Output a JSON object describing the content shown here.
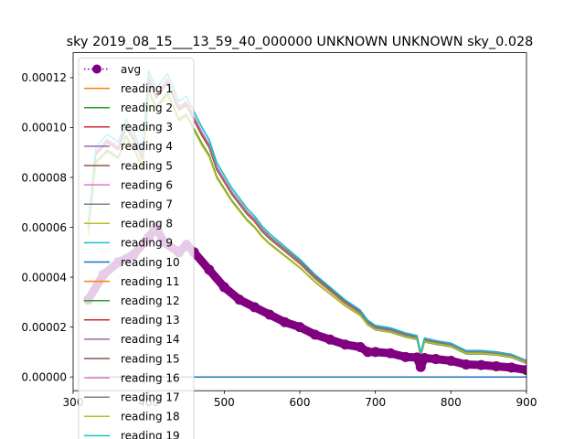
{
  "chart_data": {
    "type": "line",
    "title": "sky 2019_08_15___13_59_40_000000 UNKNOWN UNKNOWN sky_0.028",
    "xlabel": "",
    "ylabel": "",
    "xlim": [
      300,
      900
    ],
    "ylim": [
      -5.5e-06,
      0.00013
    ],
    "grid": false,
    "legend_position": "upper left",
    "x_ticks": [
      {
        "value": 300,
        "label": "300"
      },
      {
        "value": 400,
        "label": "400"
      },
      {
        "value": 500,
        "label": "500"
      },
      {
        "value": 600,
        "label": "600"
      },
      {
        "value": 700,
        "label": "700"
      },
      {
        "value": 800,
        "label": "800"
      },
      {
        "value": 900,
        "label": "900"
      }
    ],
    "y_ticks": [
      {
        "value": 0,
        "label": "0.00000"
      },
      {
        "value": 2e-05,
        "label": "0.00002"
      },
      {
        "value": 4e-05,
        "label": "0.00004"
      },
      {
        "value": 6e-05,
        "label": "0.00006"
      },
      {
        "value": 8e-05,
        "label": "0.00008"
      },
      {
        "value": 0.0001,
        "label": "0.00010"
      },
      {
        "value": 0.00012,
        "label": "0.00012"
      }
    ],
    "avg_series": {
      "name": "avg",
      "color": "#800080",
      "x": [
        320,
        340,
        360,
        380,
        400,
        410,
        420,
        440,
        450,
        460,
        480,
        500,
        520,
        540,
        560,
        580,
        600,
        620,
        640,
        660,
        680,
        690,
        700,
        720,
        740,
        755,
        760,
        765,
        780,
        800,
        820,
        840,
        860,
        880,
        900
      ],
      "y": [
        3.1e-05,
        4.1e-05,
        4.6e-05,
        4.9e-05,
        5.6e-05,
        6e-05,
        5.4e-05,
        5e-05,
        5.3e-05,
        5e-05,
        4.3e-05,
        3.6e-05,
        3.1e-05,
        2.8e-05,
        2.5e-05,
        2.2e-05,
        2e-05,
        1.7e-05,
        1.5e-05,
        1.3e-05,
        1.2e-05,
        1e-05,
        1e-05,
        9.5e-06,
        8e-06,
        7.8e-06,
        4e-06,
        7.6e-06,
        7.2e-06,
        6.5e-06,
        5e-06,
        4.8e-06,
        4.3e-06,
        3.8e-06,
        2.8e-06
      ]
    },
    "upper_curve": {
      "x": [
        320,
        330,
        345,
        360,
        370,
        380,
        392,
        400,
        410,
        425,
        440,
        450,
        460,
        470,
        480,
        490,
        500,
        510,
        520,
        530,
        540,
        550,
        560,
        580,
        600,
        620,
        640,
        660,
        680,
        690,
        700,
        720,
        740,
        755,
        760,
        765,
        780,
        800,
        820,
        840,
        860,
        880,
        900
      ],
      "y": [
        6e-05,
        9e-05,
        9.5e-05,
        9.2e-05,
        0.000101,
        9.6e-05,
        8.8e-05,
        0.00012,
        0.000113,
        0.000119,
        0.000108,
        0.00011,
        0.000104,
        9.8e-05,
        9.3e-05,
        8.4e-05,
        7.9e-05,
        7.4e-05,
        7e-05,
        6.6e-05,
        6.3e-05,
        5.9e-05,
        5.6e-05,
        5.1e-05,
        4.6e-05,
        4e-05,
        3.5e-05,
        3e-05,
        2.6e-05,
        2.2e-05,
        2e-05,
        1.9e-05,
        1.7e-05,
        1.6e-05,
        9e-06,
        1.5e-05,
        1.4e-05,
        1.3e-05,
        1e-05,
        1e-05,
        9.5e-06,
        8.5e-06,
        6e-06
      ]
    },
    "zero_series": {
      "name": "reading 10",
      "color": "#1f77b4",
      "x": [
        320,
        900
      ],
      "y": [
        0,
        0
      ]
    },
    "series": [
      {
        "name": "reading 1",
        "color": "#ff7f0e",
        "scale": 1.0
      },
      {
        "name": "reading 2",
        "color": "#2ca02c",
        "scale": 0.96
      },
      {
        "name": "reading 3",
        "color": "#d62728",
        "scale": 0.99
      },
      {
        "name": "reading 4",
        "color": "#9467bd",
        "scale": 1.0
      },
      {
        "name": "reading 5",
        "color": "#8c564b",
        "scale": 0.995
      },
      {
        "name": "reading 6",
        "color": "#e377c2",
        "scale": 1.01
      },
      {
        "name": "reading 7",
        "color": "#7f7f7f",
        "scale": 1.0
      },
      {
        "name": "reading 8",
        "color": "#bcbd22",
        "scale": 0.95
      },
      {
        "name": "reading 9",
        "color": "#17becf",
        "scale": 1.02
      },
      {
        "name": "reading 10",
        "color": "#1f77b4",
        "scale": 0
      },
      {
        "name": "reading 11",
        "color": "#ff7f0e",
        "scale": 1.0
      },
      {
        "name": "reading 12",
        "color": "#2ca02c",
        "scale": 0.96
      },
      {
        "name": "reading 13",
        "color": "#d62728",
        "scale": 0.99
      },
      {
        "name": "reading 14",
        "color": "#9467bd",
        "scale": 1.0
      },
      {
        "name": "reading 15",
        "color": "#8c564b",
        "scale": 0.995
      },
      {
        "name": "reading 16",
        "color": "#e377c2",
        "scale": 1.01
      },
      {
        "name": "reading 17",
        "color": "#7f7f7f",
        "scale": 1.0
      },
      {
        "name": "reading 18",
        "color": "#bcbd22",
        "scale": 0.95
      },
      {
        "name": "reading 19",
        "color": "#17becf",
        "scale": 1.02
      }
    ]
  }
}
